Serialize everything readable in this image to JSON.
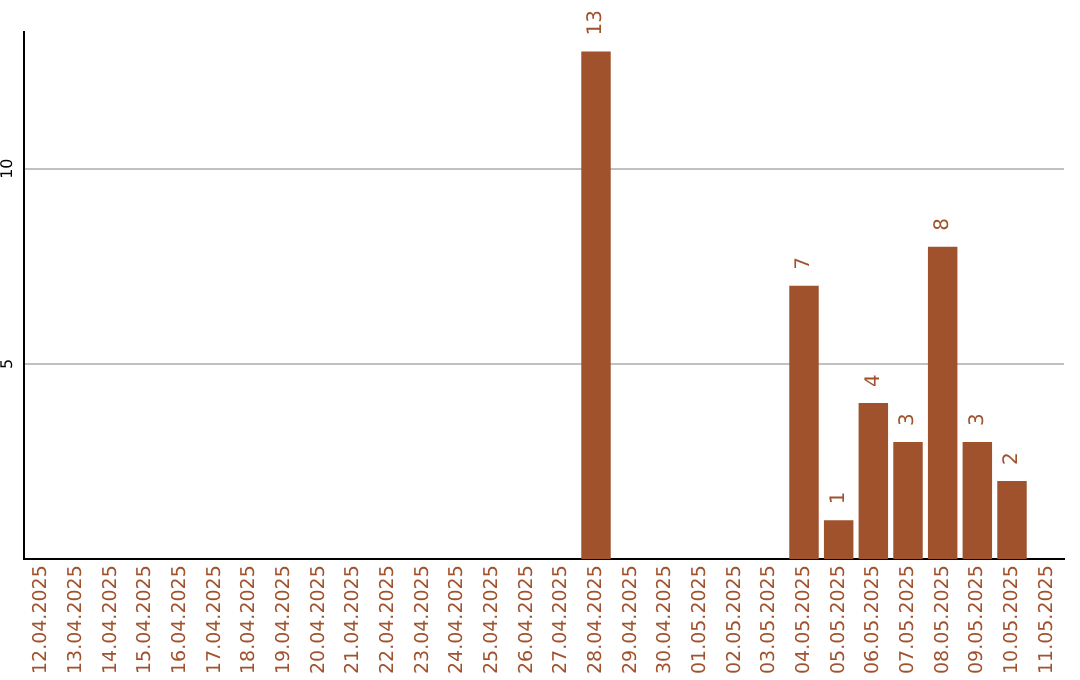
{
  "chart_data": {
    "type": "bar",
    "categories": [
      "12.04.2025",
      "13.04.2025",
      "14.04.2025",
      "15.04.2025",
      "16.04.2025",
      "17.04.2025",
      "18.04.2025",
      "19.04.2025",
      "20.04.2025",
      "21.04.2025",
      "22.04.2025",
      "23.04.2025",
      "24.04.2025",
      "25.04.2025",
      "26.04.2025",
      "27.04.2025",
      "28.04.2025",
      "29.04.2025",
      "30.04.2025",
      "01.05.2025",
      "02.05.2025",
      "03.05.2025",
      "04.05.2025",
      "05.05.2025",
      "06.05.2025",
      "07.05.2025",
      "08.05.2025",
      "09.05.2025",
      "10.05.2025",
      "11.05.2025"
    ],
    "values": [
      0,
      0,
      0,
      0,
      0,
      0,
      0,
      0,
      0,
      0,
      0,
      0,
      0,
      0,
      0,
      0,
      13,
      0,
      0,
      0,
      0,
      0,
      7,
      1,
      4,
      3,
      8,
      3,
      2,
      0
    ],
    "value_labels": [
      null,
      null,
      null,
      null,
      null,
      null,
      null,
      null,
      null,
      null,
      null,
      null,
      null,
      null,
      null,
      null,
      "13",
      null,
      null,
      null,
      null,
      null,
      "7",
      "1",
      "4",
      "3",
      "8",
      "3",
      "2",
      null
    ],
    "color": "#a0522d",
    "ylim": [
      0,
      13.5
    ],
    "yticks": [
      5,
      10
    ],
    "grid": "y"
  }
}
